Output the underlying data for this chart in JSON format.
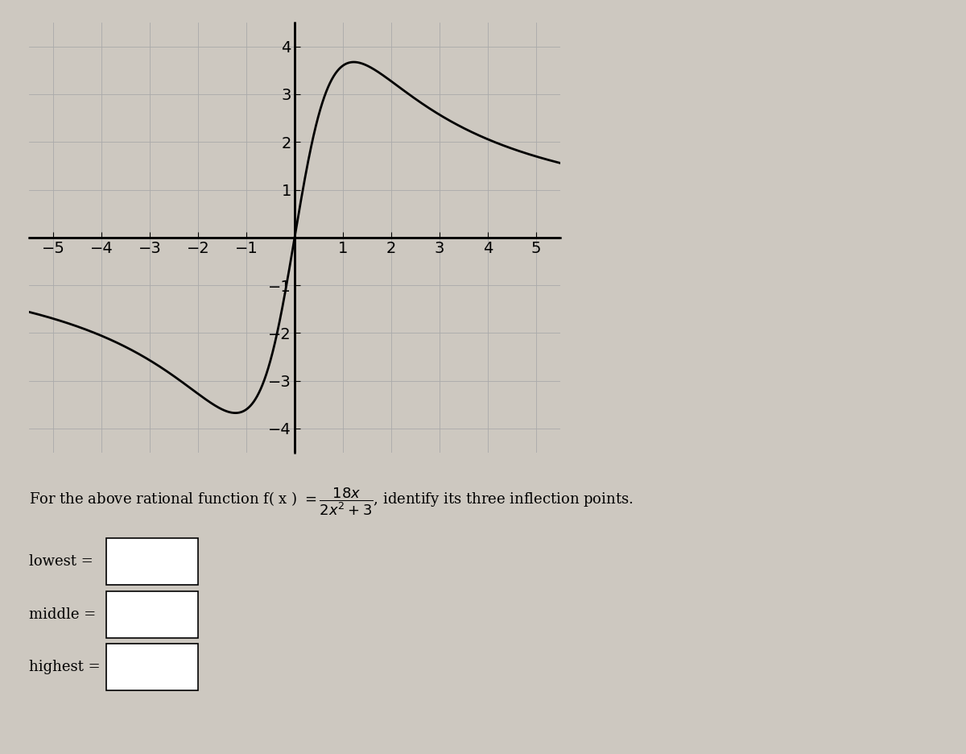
{
  "func_numerator": 18,
  "func_denom_coeff": 2,
  "func_denom_const": 3,
  "xmin": -5.5,
  "xmax": 5.5,
  "ymin": -4.5,
  "ymax": 4.5,
  "xticks": [
    -5,
    -4,
    -3,
    -2,
    -1,
    1,
    2,
    3,
    4,
    5
  ],
  "yticks": [
    -4,
    -3,
    -2,
    -1,
    1,
    2,
    3,
    4
  ],
  "grid_color": "#aaaaaa",
  "curve_color": "#000000",
  "axis_color": "#000000",
  "bg_color": "#cdc8c0",
  "plot_bg_color": "#cdc8c0",
  "label_lowest": "lowest =",
  "label_middle": "middle =",
  "label_highest": "highest =",
  "figwidth": 12.0,
  "figheight": 9.36,
  "dpi": 100
}
